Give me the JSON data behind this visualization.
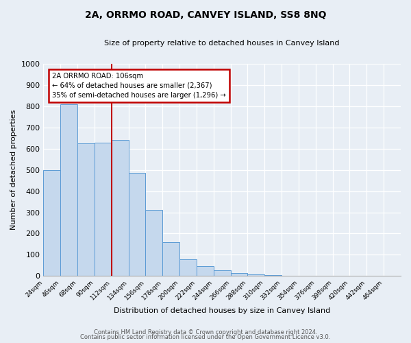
{
  "title": "2A, ORRMO ROAD, CANVEY ISLAND, SS8 8NQ",
  "subtitle": "Size of property relative to detached houses in Canvey Island",
  "xlabel": "Distribution of detached houses by size in Canvey Island",
  "ylabel": "Number of detached properties",
  "bin_labels": [
    "24sqm",
    "46sqm",
    "68sqm",
    "90sqm",
    "112sqm",
    "134sqm",
    "156sqm",
    "178sqm",
    "200sqm",
    "222sqm",
    "244sqm",
    "266sqm",
    "288sqm",
    "310sqm",
    "332sqm",
    "354sqm",
    "376sqm",
    "398sqm",
    "420sqm",
    "442sqm",
    "464sqm"
  ],
  "bar_values": [
    500,
    810,
    625,
    630,
    640,
    485,
    310,
    160,
    80,
    45,
    25,
    15,
    8,
    3,
    2,
    1,
    1,
    1,
    0,
    0,
    0
  ],
  "bar_color": "#c5d8ed",
  "bar_edge_color": "#5b9bd5",
  "property_line_x": 4.0,
  "property_line_label": "2A ORRMO ROAD: 106sqm",
  "annotation_line1": "← 64% of detached houses are smaller (2,367)",
  "annotation_line2": "35% of semi-detached houses are larger (1,296) →",
  "annotation_box_color": "#ffffff",
  "annotation_box_edge": "#c00000",
  "vline_color": "#c00000",
  "ylim": [
    0,
    1000
  ],
  "yticks": [
    0,
    100,
    200,
    300,
    400,
    500,
    600,
    700,
    800,
    900,
    1000
  ],
  "background_color": "#e8eef5",
  "plot_background": "#e8eef5",
  "footer_line1": "Contains HM Land Registry data © Crown copyright and database right 2024.",
  "footer_line2": "Contains public sector information licensed under the Open Government Licence v3.0."
}
